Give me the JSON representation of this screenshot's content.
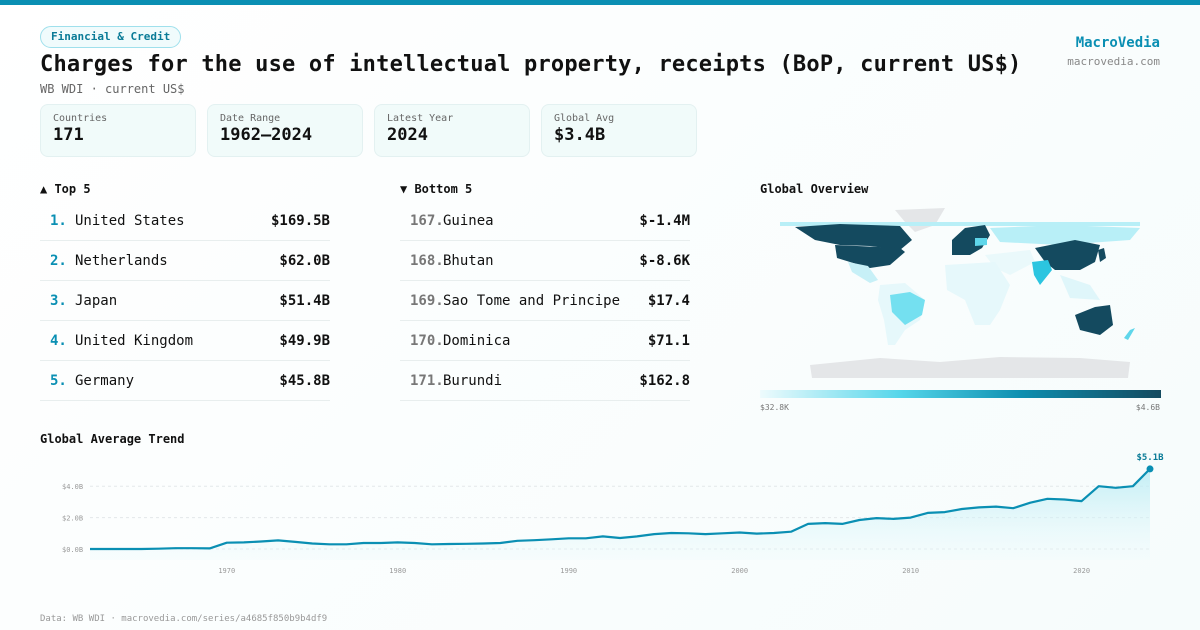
{
  "header": {
    "category": "Financial & Credit",
    "title": "Charges for the use of intellectual property, receipts (BoP, current US$)",
    "subtitle": "WB WDI · current US$"
  },
  "brand": {
    "name": "MacroVedia",
    "url": "macrovedia.com"
  },
  "stats": [
    {
      "label": "Countries",
      "value": "171"
    },
    {
      "label": "Date Range",
      "value": "1962–2024"
    },
    {
      "label": "Latest Year",
      "value": "2024"
    },
    {
      "label": "Global Avg",
      "value": "$3.4B"
    }
  ],
  "top5": {
    "title": "▲ Top 5",
    "items": [
      {
        "rank": "1.",
        "name": "United States",
        "value": "$169.5B"
      },
      {
        "rank": "2.",
        "name": "Netherlands",
        "value": "$62.0B"
      },
      {
        "rank": "3.",
        "name": "Japan",
        "value": "$51.4B"
      },
      {
        "rank": "4.",
        "name": "United Kingdom",
        "value": "$49.9B"
      },
      {
        "rank": "5.",
        "name": "Germany",
        "value": "$45.8B"
      }
    ]
  },
  "bottom5": {
    "title": "▼ Bottom 5",
    "items": [
      {
        "rank": "167.",
        "name": "Guinea",
        "value": "$-1.4M"
      },
      {
        "rank": "168.",
        "name": "Bhutan",
        "value": "$-8.6K"
      },
      {
        "rank": "169.",
        "name": "Sao Tome and Principe",
        "value": "$17.4"
      },
      {
        "rank": "170.",
        "name": "Dominica",
        "value": "$71.1"
      },
      {
        "rank": "171.",
        "name": "Burundi",
        "value": "$162.8"
      }
    ]
  },
  "map": {
    "title": "Global Overview",
    "scale_min": "$32.8K",
    "scale_max": "$4.6B",
    "colors": {
      "low": "#eefbfd",
      "mid": "#55d6ea",
      "high": "#144a5f",
      "nodata": "#e4e6e8"
    }
  },
  "chart_data": {
    "type": "area",
    "title": "Global Average Trend",
    "xlabel": "",
    "ylabel": "",
    "unit": "US$ billions",
    "xlim": [
      1962,
      2024
    ],
    "ylim": [
      -0.5,
      5.5
    ],
    "grid": true,
    "x_ticks": [
      "1970",
      "1980",
      "1990",
      "2000",
      "2010",
      "2020"
    ],
    "y_ticks": [
      {
        "v": 0,
        "label": "$0.0B"
      },
      {
        "v": 2,
        "label": "$2.0B"
      },
      {
        "v": 4,
        "label": "$4.0B"
      }
    ],
    "end_label": "$5.1B",
    "color": "#0a8fb3",
    "x": [
      1962,
      1963,
      1964,
      1965,
      1966,
      1967,
      1968,
      1969,
      1970,
      1971,
      1972,
      1973,
      1974,
      1975,
      1976,
      1977,
      1978,
      1979,
      1980,
      1981,
      1982,
      1983,
      1984,
      1985,
      1986,
      1987,
      1988,
      1989,
      1990,
      1991,
      1992,
      1993,
      1994,
      1995,
      1996,
      1997,
      1998,
      1999,
      2000,
      2001,
      2002,
      2003,
      2004,
      2005,
      2006,
      2007,
      2008,
      2009,
      2010,
      2011,
      2012,
      2013,
      2014,
      2015,
      2016,
      2017,
      2018,
      2019,
      2020,
      2021,
      2022,
      2023,
      2024
    ],
    "values": [
      0.0,
      0.0,
      0.0,
      0.0,
      0.02,
      0.05,
      0.05,
      0.04,
      0.4,
      0.42,
      0.48,
      0.55,
      0.45,
      0.35,
      0.3,
      0.3,
      0.38,
      0.38,
      0.42,
      0.38,
      0.3,
      0.32,
      0.33,
      0.35,
      0.38,
      0.52,
      0.56,
      0.62,
      0.68,
      0.68,
      0.8,
      0.7,
      0.8,
      0.95,
      1.02,
      1.0,
      0.95,
      1.0,
      1.05,
      0.98,
      1.02,
      1.1,
      1.6,
      1.65,
      1.6,
      1.85,
      1.97,
      1.92,
      2.0,
      2.3,
      2.35,
      2.55,
      2.65,
      2.7,
      2.6,
      2.95,
      3.2,
      3.15,
      3.05,
      4.0,
      3.9,
      4.0,
      5.1
    ]
  }
}
